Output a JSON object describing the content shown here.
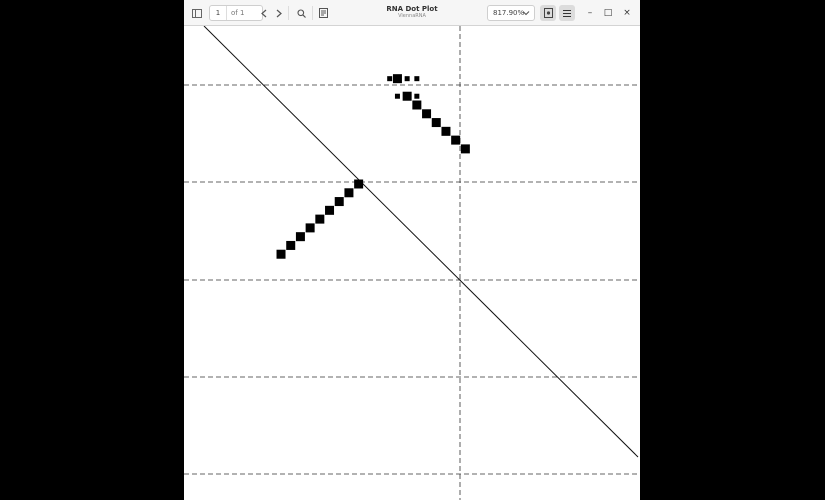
{
  "toolbar": {
    "sidebar_icon": "sidebar-toggle-icon",
    "page_current": "1",
    "page_of": "of 1",
    "prev_icon": "chevron-left-icon",
    "next_icon": "chevron-right-icon",
    "search_icon": "search-icon",
    "annotate_icon": "document-edit-icon",
    "title": "RNA Dot Plot",
    "subtitle": "ViennaRNA",
    "zoom": "817.90%",
    "zoom_icon": "chevron-down-icon",
    "view_icon": "page-view-icon",
    "menu_icon": "hamburger-menu-icon",
    "minimize_label": "–",
    "maximize_label": "□",
    "close_label": "×"
  },
  "chart_data": {
    "type": "scatter",
    "title": "",
    "description_markers": "black squares = base-pair probabilities; diagonal line = sequence identity; dashed lines = grid",
    "upper_triangle_points": [
      {
        "x": 5.6,
        "y": 21.0,
        "size": "small"
      },
      {
        "x": 6.0,
        "y": 20.0,
        "size": "small"
      },
      {
        "x": 6.0,
        "y": 21.0,
        "size": "large"
      },
      {
        "x": 6.5,
        "y": 21.0,
        "size": "small"
      },
      {
        "x": 7.0,
        "y": 21.0,
        "size": "small"
      },
      {
        "x": 6.5,
        "y": 20.0,
        "size": "large"
      },
      {
        "x": 7.0,
        "y": 20.0,
        "size": "small"
      },
      {
        "x": 7.0,
        "y": 19.5,
        "size": "large"
      },
      {
        "x": 7.5,
        "y": 19.0,
        "size": "large"
      },
      {
        "x": 8.0,
        "y": 18.5,
        "size": "large"
      },
      {
        "x": 8.5,
        "y": 18.0,
        "size": "large"
      },
      {
        "x": 9.0,
        "y": 17.5,
        "size": "large"
      },
      {
        "x": 9.5,
        "y": 17.0,
        "size": "large"
      }
    ],
    "lower_triangle_points": [
      {
        "x": 0.0,
        "y": 11.0
      },
      {
        "x": 0.5,
        "y": 11.5
      },
      {
        "x": 1.0,
        "y": 12.0
      },
      {
        "x": 1.5,
        "y": 12.5
      },
      {
        "x": 2.0,
        "y": 13.0
      },
      {
        "x": 2.5,
        "y": 13.5
      },
      {
        "x": 3.0,
        "y": 14.0
      },
      {
        "x": 3.5,
        "y": 14.5
      },
      {
        "x": 4.0,
        "y": 15.0
      }
    ],
    "xlim": [
      -5,
      18.5
    ],
    "ylim": [
      -3,
      24
    ],
    "grid": true
  }
}
